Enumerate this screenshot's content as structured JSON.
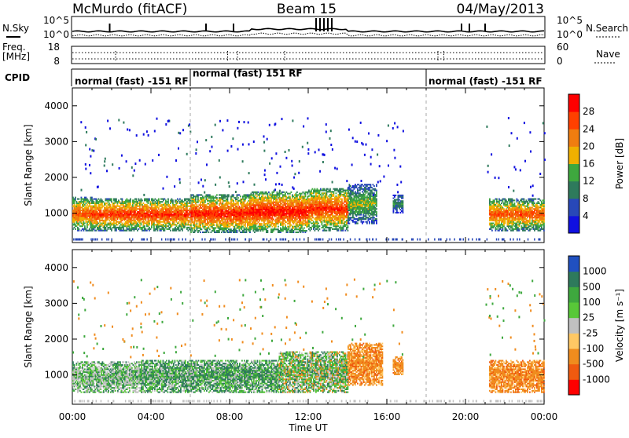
{
  "header": {
    "station": "McMurdo (fitACF)",
    "beam": "Beam 15",
    "date": "04/May/2013"
  },
  "status_panel": {
    "left_labels": {
      "nsky": "N.Sky",
      "freq": "Freq.",
      "freq_unit": "[MHz]",
      "cpid": "CPID"
    },
    "right_labels": {
      "nsearch": "N.Search",
      "nave": "Nave"
    },
    "noise_ticks_left": [
      "10^5",
      "10^0"
    ],
    "noise_ticks_right": [
      "10^5",
      "10^0"
    ],
    "freq_ticks": [
      "18",
      "8"
    ],
    "nave_ticks": [
      "60",
      "0"
    ],
    "cpid_segments": [
      {
        "label": "normal (fast) -151 RF",
        "start_hour": 0,
        "end_hour": 6
      },
      {
        "label": "normal (fast) 151 RF",
        "start_hour": 6,
        "end_hour": 18
      },
      {
        "label": "normal (fast) -151 RF",
        "start_hour": 18,
        "end_hour": 24
      }
    ]
  },
  "chart_data": [
    {
      "type": "heatmap",
      "quantity": "power",
      "xlabel": "",
      "ylabel": "Slant Range [km]",
      "xlim_hours": [
        0,
        24
      ],
      "ylim": [
        180,
        4500
      ],
      "yticks": [
        "1000",
        "2000",
        "3000",
        "4000"
      ],
      "colorbar": {
        "label": "Power [dB]",
        "ticks": [
          "4",
          "8",
          "12",
          "16",
          "20",
          "24",
          "28"
        ],
        "range": [
          0,
          30
        ],
        "colors": [
          "#1010e0",
          "#2848b8",
          "#2e7a5c",
          "#3ea83e",
          "#f0b000",
          "#f07d10",
          "#ff4000",
          "#ff0000"
        ]
      },
      "regions": [
        {
          "t": [
            0.0,
            1.0
          ],
          "r": [
            500,
            1450
          ],
          "level": 22
        },
        {
          "t": [
            1.0,
            4.0
          ],
          "r": [
            500,
            1400
          ],
          "level": 24
        },
        {
          "t": [
            4.0,
            6.0
          ],
          "r": [
            500,
            1400
          ],
          "level": 24
        },
        {
          "t": [
            6.0,
            9.0
          ],
          "r": [
            450,
            1500
          ],
          "level": 25
        },
        {
          "t": [
            9.0,
            12.0
          ],
          "r": [
            450,
            1600
          ],
          "level": 26
        },
        {
          "t": [
            12.0,
            14.0
          ],
          "r": [
            500,
            1700
          ],
          "level": 24
        },
        {
          "t": [
            14.0,
            15.5
          ],
          "r": [
            700,
            1800
          ],
          "level": 14
        },
        {
          "t": [
            16.3,
            16.8
          ],
          "r": [
            1000,
            1500
          ],
          "level": 10
        },
        {
          "t": [
            21.2,
            24.0
          ],
          "r": [
            500,
            1400
          ],
          "level": 22
        }
      ]
    },
    {
      "type": "heatmap",
      "quantity": "velocity",
      "xlabel": "Time UT",
      "ylabel": "Slant Range [km]",
      "xlim_hours": [
        0,
        24
      ],
      "ylim": [
        180,
        4500
      ],
      "yticks": [
        "1000",
        "2000",
        "3000",
        "4000"
      ],
      "xticks": [
        "00:00",
        "04:00",
        "08:00",
        "12:00",
        "16:00",
        "20:00",
        "00:00"
      ],
      "colorbar": {
        "label": "Velocity [m s⁻¹]",
        "ticks": [
          "1000",
          "500",
          "100",
          "25",
          "-25",
          "-100",
          "-500",
          "-1000"
        ],
        "colors": [
          "#2050c0",
          "#2e7a5c",
          "#3ea83e",
          "#58c838",
          "#c0c0c0",
          "#ffc864",
          "#f08c1e",
          "#f05a10",
          "#ff0000"
        ]
      },
      "regions": [
        {
          "t": [
            0.0,
            3.5
          ],
          "r": [
            500,
            1350
          ],
          "class": "grey-green"
        },
        {
          "t": [
            3.5,
            10.5
          ],
          "r": [
            500,
            1400
          ],
          "class": "dark-green"
        },
        {
          "t": [
            10.5,
            14.0
          ],
          "r": [
            500,
            1650
          ],
          "class": "green-orange"
        },
        {
          "t": [
            14.0,
            15.8
          ],
          "r": [
            700,
            1900
          ],
          "class": "orange"
        },
        {
          "t": [
            16.3,
            16.8
          ],
          "r": [
            1000,
            1500
          ],
          "class": "orange"
        },
        {
          "t": [
            21.2,
            24.0
          ],
          "r": [
            500,
            1400
          ],
          "class": "orange"
        }
      ]
    }
  ]
}
